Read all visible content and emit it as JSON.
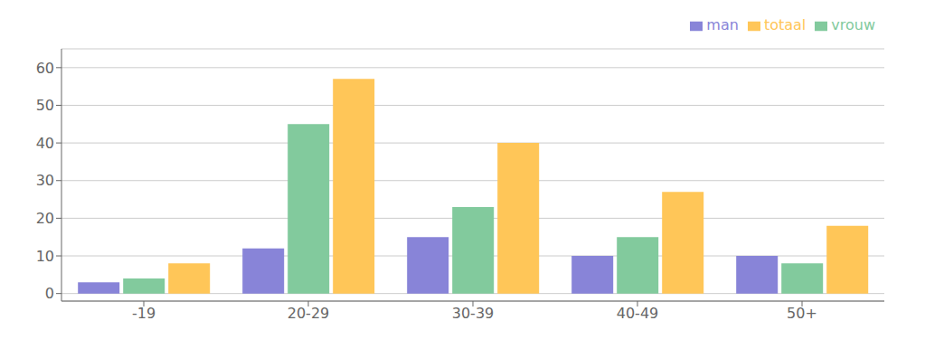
{
  "chart_data": {
    "type": "bar",
    "categories": [
      "-19",
      "20-29",
      "30-39",
      "40-49",
      "50+"
    ],
    "series": [
      {
        "name": "man",
        "color": "#8884d8",
        "values": [
          3,
          12,
          15,
          10,
          10
        ]
      },
      {
        "name": "vrouw",
        "color": "#82ca9d",
        "values": [
          4,
          45,
          23,
          15,
          8
        ]
      },
      {
        "name": "totaal",
        "color": "#ffc658",
        "values": [
          8,
          57,
          40,
          27,
          18
        ]
      }
    ],
    "ylim": [
      -2,
      65
    ],
    "yticks": [
      0,
      10,
      20,
      30,
      40,
      50,
      60
    ],
    "grid": true,
    "legend": "upper right"
  }
}
